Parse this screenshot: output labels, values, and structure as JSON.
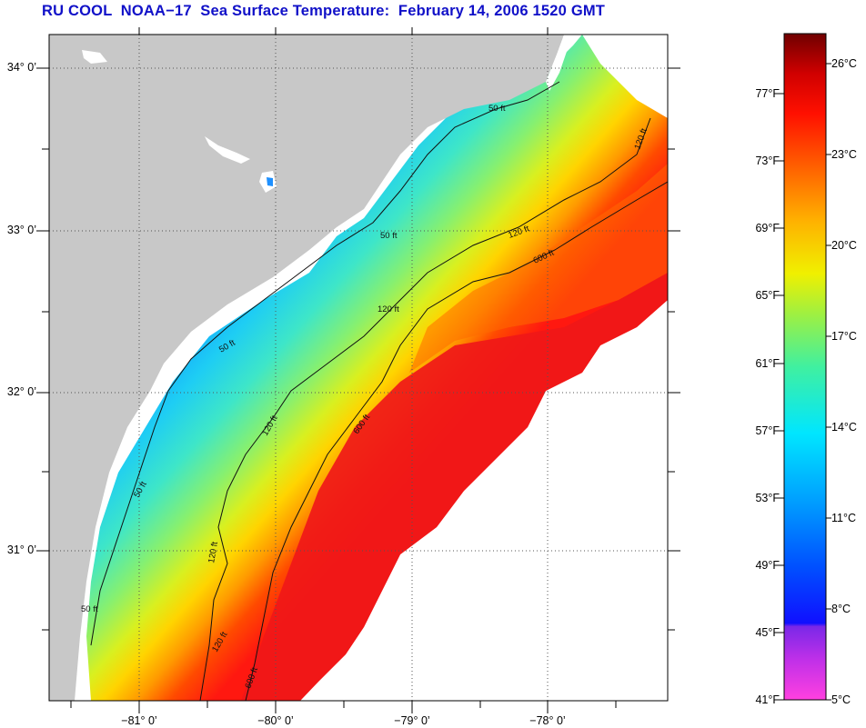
{
  "title": "RU COOL  NOAA−17  Sea Surface Temperature:  February 14, 2006 1520 GMT",
  "map": {
    "lat_labels": [
      "34° 0’",
      "33° 0’",
      "32° 0’",
      "31° 0’"
    ],
    "lon_labels": [
      "−81° 0’",
      "−80° 0’",
      "−79° 0’",
      "−78° 0’"
    ],
    "contour_labels": [
      "50 ft",
      "50 ft",
      "50 ft",
      "50 ft",
      "50 ft",
      "120 ft",
      "120 ft",
      "120 ft",
      "120 ft",
      "120 ft",
      "120 ft",
      "600 ft",
      "600 ft",
      "600 ft"
    ],
    "land_color": "#c8c8c8",
    "no_data_color": "#ffffff"
  },
  "colorbar": {
    "fahrenheit_labels": [
      "77°F",
      "73°F",
      "69°F",
      "65°F",
      "61°F",
      "57°F",
      "53°F",
      "49°F",
      "45°F",
      "41°F"
    ],
    "celsius_labels": [
      "26°C",
      "23°C",
      "20°C",
      "17°C",
      "14°C",
      "11°C",
      "8°C",
      "5°C"
    ],
    "colors": [
      "#ff40e0",
      "#7a28e8",
      "#0000ff",
      "#0050ff",
      "#00a0ff",
      "#00e6ff",
      "#40f0a0",
      "#a0f040",
      "#f0f000",
      "#ffb000",
      "#ff6000",
      "#ff1000",
      "#e00000",
      "#700000"
    ]
  }
}
